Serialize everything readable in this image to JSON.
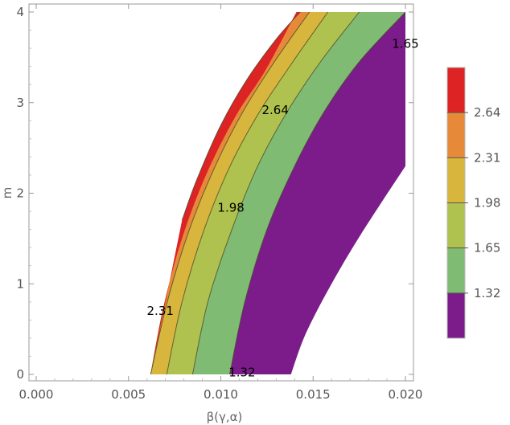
{
  "chart_data": {
    "type": "contour",
    "xlabel": "β(γ,α)",
    "ylabel": "m",
    "xlim": [
      0.0,
      0.02
    ],
    "ylim": [
      0.0,
      4.0
    ],
    "x_ticks": [
      "0.000",
      "0.005",
      "0.010",
      "0.015",
      "0.020"
    ],
    "y_ticks": [
      "0",
      "1",
      "2",
      "3",
      "4"
    ],
    "contour_levels": [
      1.32,
      1.65,
      1.98,
      2.31,
      2.64
    ],
    "bands": [
      {
        "name": "below 1.32",
        "color": "#7b1c8a"
      },
      {
        "name": "1.32 – 1.65",
        "color": "#80bb74"
      },
      {
        "name": "1.65 – 1.98",
        "color": "#afc14e"
      },
      {
        "name": "1.98 – 2.31",
        "color": "#d8b63e"
      },
      {
        "name": "2.31 – 2.64",
        "color": "#e68a3a"
      },
      {
        "name": "above 2.64",
        "color": "#dd2323"
      }
    ],
    "contour_lines": [
      {
        "level": 1.32,
        "points": [
          [
            0.01048,
            0.0
          ],
          [
            0.0113,
            0.8
          ],
          [
            0.0125,
            1.6
          ],
          [
            0.014,
            2.3
          ],
          [
            0.0156,
            2.9
          ],
          [
            0.0175,
            3.45
          ],
          [
            0.02,
            4.0
          ]
        ]
      },
      {
        "level": 1.65,
        "points": [
          [
            0.00847,
            0.0
          ],
          [
            0.0093,
            0.8
          ],
          [
            0.0106,
            1.6
          ],
          [
            0.012,
            2.3
          ],
          [
            0.0136,
            2.9
          ],
          [
            0.0154,
            3.45
          ],
          [
            0.0175,
            4.0
          ]
        ]
      },
      {
        "level": 1.98,
        "points": [
          [
            0.00707,
            0.0
          ],
          [
            0.0079,
            0.8
          ],
          [
            0.0091,
            1.6
          ],
          [
            0.0105,
            2.3
          ],
          [
            0.0121,
            2.9
          ],
          [
            0.0139,
            3.45
          ],
          [
            0.0158,
            4.0
          ]
        ]
      },
      {
        "level": 2.31,
        "points": [
          [
            0.0062,
            0.0
          ],
          [
            0.0071,
            0.8
          ],
          [
            0.0083,
            1.6
          ],
          [
            0.0097,
            2.3
          ],
          [
            0.0112,
            2.9
          ],
          [
            0.0129,
            3.45
          ],
          [
            0.0148,
            4.0
          ]
        ]
      },
      {
        "level": 2.64,
        "points": [
          [
            0.0079,
            1.7
          ],
          [
            0.0087,
            2.15
          ],
          [
            0.01,
            2.75
          ],
          [
            0.0114,
            3.25
          ],
          [
            0.013,
            3.7
          ],
          [
            0.0143,
            4.0
          ]
        ]
      }
    ],
    "region_left_edge": [
      [
        0.0062,
        0.0
      ],
      [
        0.0069,
        0.75
      ],
      [
        0.0079,
        1.5
      ],
      [
        0.0092,
        2.2
      ],
      [
        0.0108,
        2.85
      ],
      [
        0.0124,
        3.35
      ],
      [
        0.0141,
        4.0
      ]
    ],
    "region_right_edge": [
      [
        0.0138,
        0.0
      ],
      [
        0.0146,
        0.45
      ],
      [
        0.016,
        1.0
      ],
      [
        0.0176,
        1.55
      ],
      [
        0.02,
        2.3
      ]
    ],
    "contour_labels": [
      {
        "text": "2.64",
        "x": 0.01295,
        "y": 2.92
      },
      {
        "text": "1.98",
        "x": 0.01055,
        "y": 1.84
      },
      {
        "text": "2.31",
        "x": 0.00672,
        "y": 0.7
      },
      {
        "text": "1.32",
        "x": 0.01115,
        "y": 0.02
      },
      {
        "text": "1.65",
        "x": 0.02,
        "y": 3.65
      }
    ],
    "legend": {
      "position": "right",
      "labels": [
        "2.64",
        "2.31",
        "1.98",
        "1.65",
        "1.32"
      ]
    }
  }
}
